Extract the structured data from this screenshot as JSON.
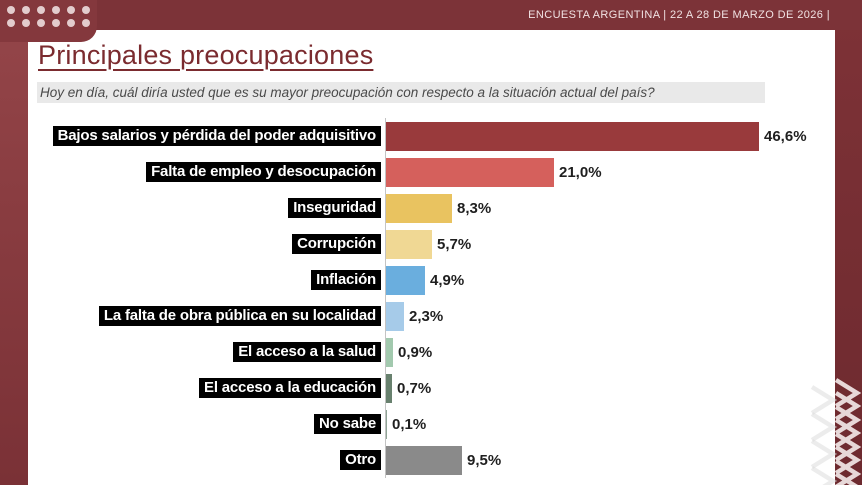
{
  "header": {
    "bar_text": "ENCUESTA ARGENTINA | 22 A 28 DE MARZO DE 2026  |"
  },
  "title": "Principales preocupaciones",
  "subtitle": "Hoy en día, cuál diría usted que es su mayor preocupación con respecto a la situación actual del país?",
  "chart_data": {
    "type": "bar",
    "orientation": "horizontal",
    "title": "Principales preocupaciones",
    "question": "Hoy en día, cuál diría usted que es su mayor preocupación con respecto a la situación actual del país?",
    "categories": [
      "Bajos salarios y pérdida del poder adquisitivo",
      "Falta de empleo y desocupación",
      "Inseguridad",
      "Corrupción",
      "Inflación",
      "La falta de obra pública en su localidad",
      "El acceso a la salud",
      "El acceso a la educación",
      "No sabe",
      "Otro"
    ],
    "values": [
      46.6,
      21.0,
      8.3,
      5.7,
      4.9,
      2.3,
      0.9,
      0.7,
      0.1,
      9.5
    ],
    "value_labels": [
      "46,6%",
      "21,0%",
      "8,3%",
      "5,7%",
      "4,9%",
      "2,3%",
      "0,9%",
      "0,7%",
      "0,1%",
      "9,5%"
    ],
    "bar_colors": [
      "#993a3c",
      "#d5605c",
      "#e9c360",
      "#f0d894",
      "#6aaede",
      "#a6cbe9",
      "#a2c9ae",
      "#68816e",
      "#8fa596",
      "#8a8a8a"
    ],
    "xlim": [
      0,
      50
    ],
    "grid": false,
    "legend": false,
    "label_style": "white-bold-on-black",
    "value_format": "comma-decimal-percent"
  },
  "colors": {
    "accent_dark_red": "#7c3338",
    "left_strip": "#8a3d41",
    "title_text": "#7b2b2f",
    "subtitle_bg": "#e9e9e9",
    "label_bg": "#000000",
    "label_text": "#ffffff",
    "axis_line": "#c4c4c4",
    "dot": "#e3cccd"
  }
}
